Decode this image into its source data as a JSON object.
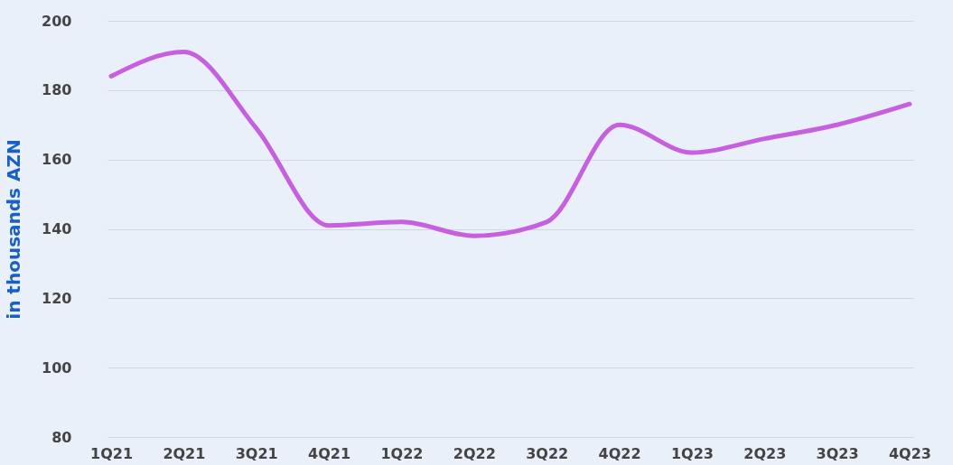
{
  "chart_data": {
    "type": "line",
    "ylabel": "in thousands AZN",
    "categories": [
      "1Q21",
      "2Q21",
      "3Q21",
      "4Q21",
      "1Q22",
      "2Q22",
      "3Q22",
      "4Q22",
      "1Q23",
      "2Q23",
      "3Q23",
      "4Q23"
    ],
    "series": [
      {
        "color": "#c65fe0",
        "values": [
          184,
          191,
          169,
          141,
          142,
          138,
          142,
          170,
          162,
          166,
          170,
          176
        ]
      }
    ],
    "ylim": [
      80,
      200
    ],
    "yticks": [
      80,
      100,
      120,
      140,
      160,
      180,
      200
    ],
    "grid": "y",
    "marker": "none",
    "line_style": "solid"
  }
}
